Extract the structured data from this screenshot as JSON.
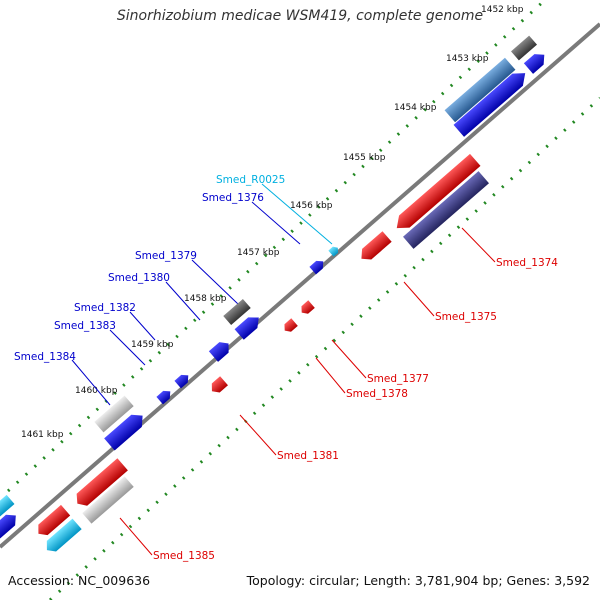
{
  "title": "Sinorhizobium medicae WSM419, complete genome",
  "accession": "Accession: NC_009636",
  "topology": "Topology: circular; Length: 3,781,904 bp; Genes: 3,592",
  "ticks": [
    "1452 kbp",
    "1453 kbp",
    "1454 kbp",
    "1455 kbp",
    "1456 kbp",
    "1457 kbp",
    "1458 kbp",
    "1459 kbp",
    "1460 kbp",
    "1461 kbp"
  ],
  "labels": [
    "Smed_R0025",
    "Smed_1376",
    "Smed_1379",
    "Smed_1380",
    "Smed_1382",
    "Smed_1383",
    "Smed_1384",
    "Smed_1374",
    "Smed_1375",
    "Smed_1377",
    "Smed_1378",
    "Smed_1381",
    "Smed_1385"
  ],
  "colors": {
    "red_gene": "#e00000",
    "blue_gene": "#0000e0",
    "cyan_gene": "#00b8e8",
    "rna_label": "#00b0e0",
    "steel_gene": "#3a7ab8",
    "slate_gene": "#3a3a8a",
    "gray_gene": "#bbbbbb",
    "darkgray_gene": "#555555",
    "dots": "#228822",
    "backbone": "#777777"
  }
}
